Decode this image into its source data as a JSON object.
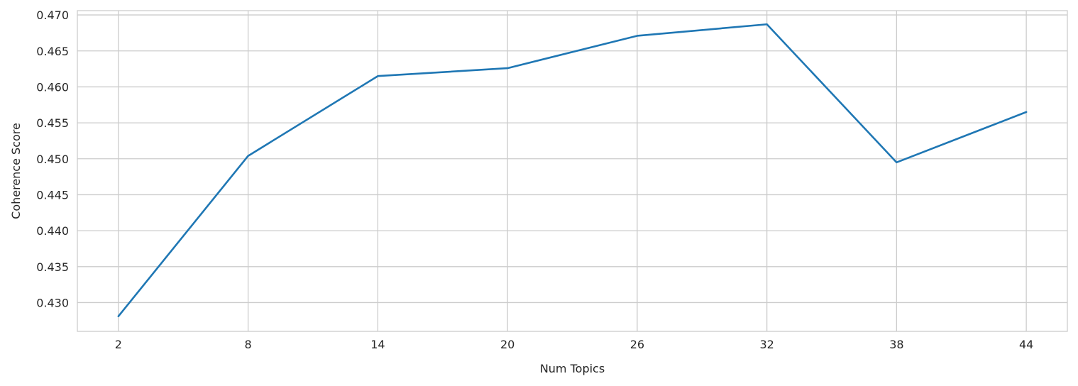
{
  "chart_data": {
    "type": "line",
    "title": "",
    "xlabel": "Num Topics",
    "ylabel": "Coherence Score",
    "x": [
      2,
      8,
      14,
      20,
      26,
      32,
      38,
      44
    ],
    "x_tick_labels": [
      "2",
      "8",
      "14",
      "20",
      "26",
      "32",
      "38",
      "44"
    ],
    "y_ticks": [
      0.43,
      0.435,
      0.44,
      0.445,
      0.45,
      0.455,
      0.46,
      0.465,
      0.47
    ],
    "y_tick_labels": [
      "0.430",
      "0.435",
      "0.440",
      "0.445",
      "0.450",
      "0.455",
      "0.460",
      "0.465",
      "0.470"
    ],
    "xlim": [
      0.1,
      45.9
    ],
    "ylim": [
      0.426,
      0.4706
    ],
    "series": [
      {
        "values": [
          0.4281,
          0.4504,
          0.4615,
          0.4626,
          0.4671,
          0.4687,
          0.4495,
          0.4565
        ],
        "color": "#1f77b4"
      }
    ],
    "grid": true,
    "legend": "none"
  }
}
